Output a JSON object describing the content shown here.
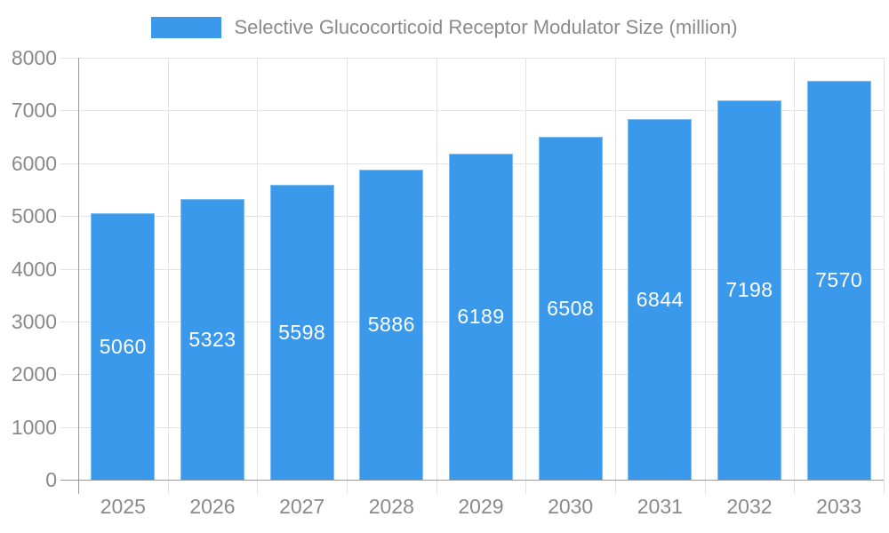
{
  "chart_data": {
    "type": "bar",
    "title": "Selective Glucocorticoid Receptor Modulator Size (million)",
    "legend_position": "top",
    "categories": [
      "2025",
      "2026",
      "2027",
      "2028",
      "2029",
      "2030",
      "2031",
      "2032",
      "2033"
    ],
    "values": [
      5060,
      5323,
      5598,
      5886,
      6189,
      6508,
      6844,
      7198,
      7570
    ],
    "value_labels_inside_bars": true,
    "xlabel": "",
    "ylabel": "",
    "ylim": [
      0,
      8000
    ],
    "y_ticks": [
      0,
      1000,
      2000,
      3000,
      4000,
      5000,
      6000,
      7000,
      8000
    ],
    "grid": true,
    "colors": {
      "bar": "#3B99EC",
      "bar_border": "#7CBDF3",
      "value_label": "#FFFFFF",
      "axis_text": "#8A8A8A",
      "legend_text": "#8A8A8A",
      "grid_line": "#E3E3E3",
      "axis_line": "#9A9A9A",
      "background": "#FFFFFF"
    }
  }
}
